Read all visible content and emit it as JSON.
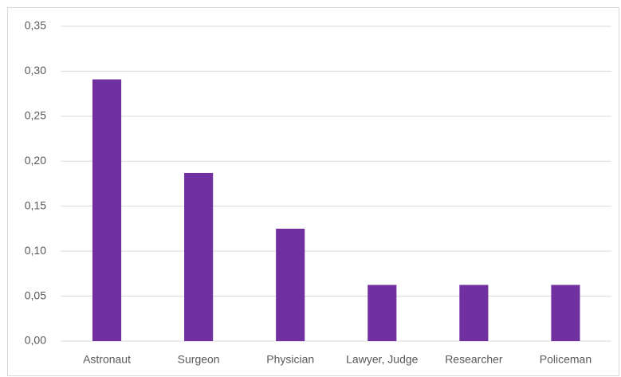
{
  "chart_data": {
    "type": "bar",
    "categories": [
      "Astronaut",
      "Surgeon",
      "Physician",
      "Lawyer, Judge",
      "Researcher",
      "Policeman"
    ],
    "values": [
      0.291,
      0.187,
      0.125,
      0.0625,
      0.0625,
      0.0625
    ],
    "color": "#7030a0",
    "ylim": [
      0,
      0.35
    ],
    "yticks": [
      {
        "value": 0,
        "label": "0,00"
      },
      {
        "value": 0.05,
        "label": "0,05"
      },
      {
        "value": 0.1,
        "label": "0,10"
      },
      {
        "value": 0.15,
        "label": "0,15"
      },
      {
        "value": 0.2,
        "label": "0,20"
      },
      {
        "value": 0.25,
        "label": "0,25"
      },
      {
        "value": 0.3,
        "label": "0,30"
      },
      {
        "value": 0.35,
        "label": "0,35"
      }
    ],
    "grid": true
  }
}
